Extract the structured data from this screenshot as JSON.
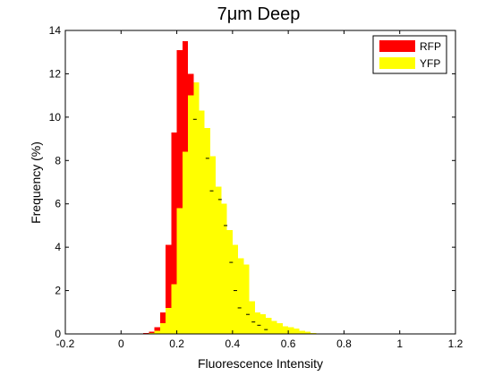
{
  "chart_data": {
    "type": "bar",
    "title": "7μm Deep",
    "xlabel": "Fluorescence Intensity",
    "ylabel": "Frequency (%)",
    "xlim": [
      -0.2,
      1.2
    ],
    "ylim": [
      0,
      14
    ],
    "xticks": [
      "-0.2",
      "0",
      "0.2",
      "0.4",
      "0.6",
      "0.8",
      "1",
      "1.2"
    ],
    "yticks": [
      "0",
      "2",
      "4",
      "6",
      "8",
      "10",
      "12",
      "14"
    ],
    "grid": false,
    "legend_position": "top-right",
    "bin_width": 0.02,
    "series": [
      {
        "name": "RFP",
        "color": "#ff0000",
        "x": [
          0.09,
          0.11,
          0.13,
          0.15,
          0.17,
          0.19,
          0.21,
          0.23,
          0.25,
          0.27,
          0.29,
          0.31,
          0.33,
          0.35,
          0.37,
          0.39,
          0.41,
          0.43,
          0.45,
          0.47,
          0.49,
          0.51,
          0.53,
          0.55
        ],
        "values": [
          0.05,
          0.1,
          0.3,
          1.0,
          4.1,
          9.3,
          13.1,
          13.5,
          12.0,
          10.9,
          9.2,
          7.6,
          6.9,
          5.9,
          4.9,
          4.3,
          3.4,
          2.1,
          1.4,
          0.8,
          0.6,
          0.4,
          0.2,
          0.1
        ]
      },
      {
        "name": "YFP",
        "color": "#ffff00",
        "x": [
          0.11,
          0.13,
          0.15,
          0.17,
          0.19,
          0.21,
          0.23,
          0.25,
          0.27,
          0.29,
          0.31,
          0.33,
          0.35,
          0.37,
          0.39,
          0.41,
          0.43,
          0.45,
          0.47,
          0.49,
          0.51,
          0.53,
          0.55,
          0.57,
          0.59,
          0.61,
          0.63,
          0.65,
          0.67,
          0.69,
          0.71
        ],
        "values": [
          0.05,
          0.15,
          0.5,
          1.2,
          2.3,
          5.8,
          8.4,
          11.0,
          11.6,
          10.3,
          9.5,
          8.2,
          6.8,
          6.0,
          4.8,
          4.1,
          3.5,
          3.2,
          1.5,
          1.0,
          0.9,
          0.75,
          0.6,
          0.5,
          0.35,
          0.3,
          0.25,
          0.15,
          0.1,
          0.05,
          0.03
        ]
      }
    ],
    "marker_values": [
      {
        "x": 0.265,
        "y": 9.9
      },
      {
        "x": 0.31,
        "y": 8.1
      },
      {
        "x": 0.325,
        "y": 6.6
      },
      {
        "x": 0.355,
        "y": 6.2
      },
      {
        "x": 0.375,
        "y": 5.0
      },
      {
        "x": 0.395,
        "y": 3.3
      },
      {
        "x": 0.41,
        "y": 2.0
      },
      {
        "x": 0.425,
        "y": 1.2
      },
      {
        "x": 0.455,
        "y": 0.9
      },
      {
        "x": 0.475,
        "y": 0.55
      },
      {
        "x": 0.495,
        "y": 0.4
      },
      {
        "x": 0.52,
        "y": 0.2
      }
    ]
  }
}
